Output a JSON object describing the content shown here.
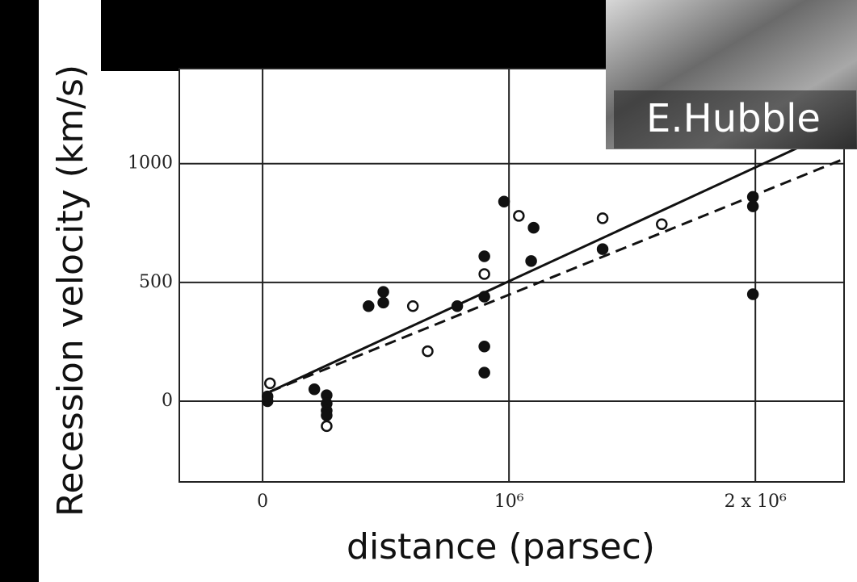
{
  "chart_data": {
    "type": "scatter",
    "xlabel": "distance (parsec)",
    "ylabel": "Recession velocity (km/s)",
    "annotation": "E.Hubble",
    "xlim": [
      -338000,
      2360000
    ],
    "ylim": [
      -340,
      1400
    ],
    "xticks": [
      0,
      {
        "value": 1000000,
        "label": "10⁶"
      },
      {
        "value": 2000000,
        "label": "2 x 10⁶"
      }
    ],
    "yticks": [
      0,
      500,
      1000
    ],
    "grid": true,
    "series": [
      {
        "marker": "filled",
        "color": "#111",
        "x": [
          20000,
          20000,
          210000,
          260000,
          260000,
          260000,
          260000,
          430000,
          490000,
          490000,
          790000,
          900000,
          900000,
          900000,
          900000,
          980000,
          1100000,
          1090000,
          1380000,
          1990000,
          1990000,
          1990000
        ],
        "values": [
          0,
          20,
          50,
          25,
          -10,
          -40,
          -60,
          400,
          460,
          415,
          400,
          610,
          440,
          230,
          120,
          840,
          730,
          590,
          640,
          860,
          820,
          450
        ]
      },
      {
        "marker": "open",
        "color": "#111",
        "x": [
          30000,
          260000,
          610000,
          670000,
          900000,
          1040000,
          1380000,
          1620000
        ],
        "values": [
          75,
          -105,
          400,
          210,
          535,
          780,
          770,
          745
        ]
      }
    ],
    "fits": [
      {
        "dash": "solid",
        "color": "#111",
        "x": [
          30000,
          2200000
        ],
        "values": [
          40,
          1080
        ]
      },
      {
        "dash": "dashed",
        "color": "#111",
        "x": [
          30000,
          2360000
        ],
        "values": [
          40,
          1020
        ]
      }
    ]
  }
}
